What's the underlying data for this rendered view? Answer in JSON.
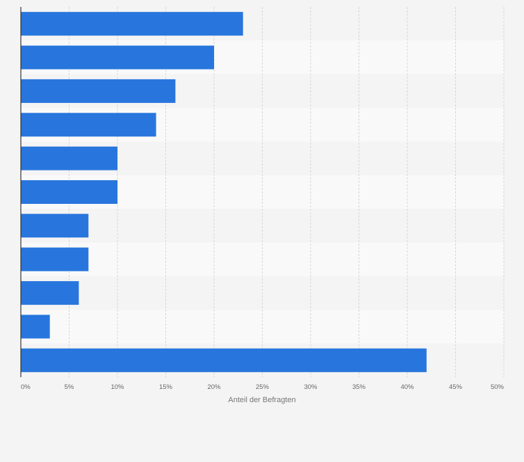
{
  "chart_data": {
    "type": "bar",
    "orientation": "horizontal",
    "categories": [
      "",
      "",
      "",
      "",
      "",
      "",
      "",
      "",
      "",
      "",
      ""
    ],
    "values": [
      23,
      20,
      16,
      14,
      10,
      10,
      7,
      7,
      6,
      3,
      42
    ],
    "title": "",
    "xlabel": "Anteil der Befragten",
    "ylabel": "",
    "xlim": [
      0,
      50
    ],
    "xticks": [
      "0%",
      "5%",
      "10%",
      "15%",
      "20%",
      "25%",
      "30%",
      "35%",
      "40%",
      "45%",
      "50%"
    ],
    "grid": true,
    "bar_color": "#2876dd",
    "band_colors": [
      "#f4f4f4",
      "#f9f9f9"
    ]
  }
}
